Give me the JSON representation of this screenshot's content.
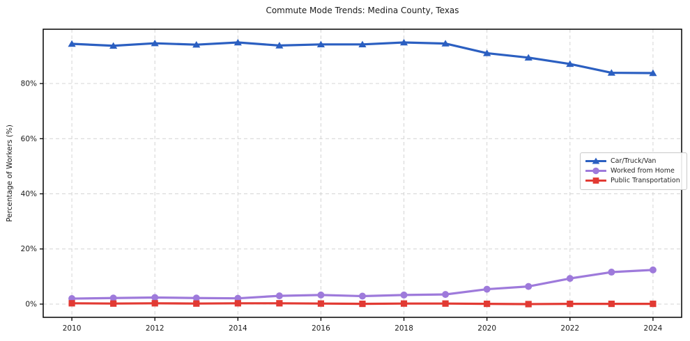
{
  "chart_data": {
    "type": "line",
    "title": "Commute Mode Trends: Medina County, Texas",
    "xlabel": "",
    "ylabel": "Percentage of Workers (%)",
    "x": [
      2010,
      2011,
      2012,
      2013,
      2014,
      2015,
      2016,
      2017,
      2018,
      2019,
      2020,
      2021,
      2022,
      2023,
      2024
    ],
    "series": [
      {
        "name": "Car/Truck/Van",
        "color": "#2b5fc1",
        "marker": "triangle",
        "values": [
          94.4,
          93.7,
          94.6,
          94.1,
          94.9,
          93.8,
          94.2,
          94.2,
          94.9,
          94.5,
          91.0,
          89.4,
          87.1,
          83.9,
          83.8
        ]
      },
      {
        "name": "Worked from Home",
        "color": "#9e7adb",
        "marker": "circle",
        "values": [
          2.0,
          2.2,
          2.4,
          2.2,
          2.1,
          3.0,
          3.3,
          2.9,
          3.3,
          3.5,
          5.4,
          6.4,
          9.3,
          11.6,
          12.4
        ]
      },
      {
        "name": "Public Transportation",
        "color": "#e23a33",
        "marker": "square",
        "values": [
          0.3,
          0.2,
          0.3,
          0.2,
          0.3,
          0.3,
          0.2,
          0.1,
          0.2,
          0.2,
          0.1,
          0.0,
          0.1,
          0.1,
          0.1
        ]
      }
    ],
    "x_ticks": [
      2010,
      2012,
      2014,
      2016,
      2018,
      2020,
      2022,
      2024
    ],
    "y_ticks": [
      0,
      20,
      40,
      60,
      80
    ],
    "y_tick_suffix": "%",
    "xlim": [
      2009.31,
      2024.69
    ],
    "ylim": [
      -4.8,
      99.7
    ],
    "grid": true,
    "legend_position": "center-right"
  }
}
